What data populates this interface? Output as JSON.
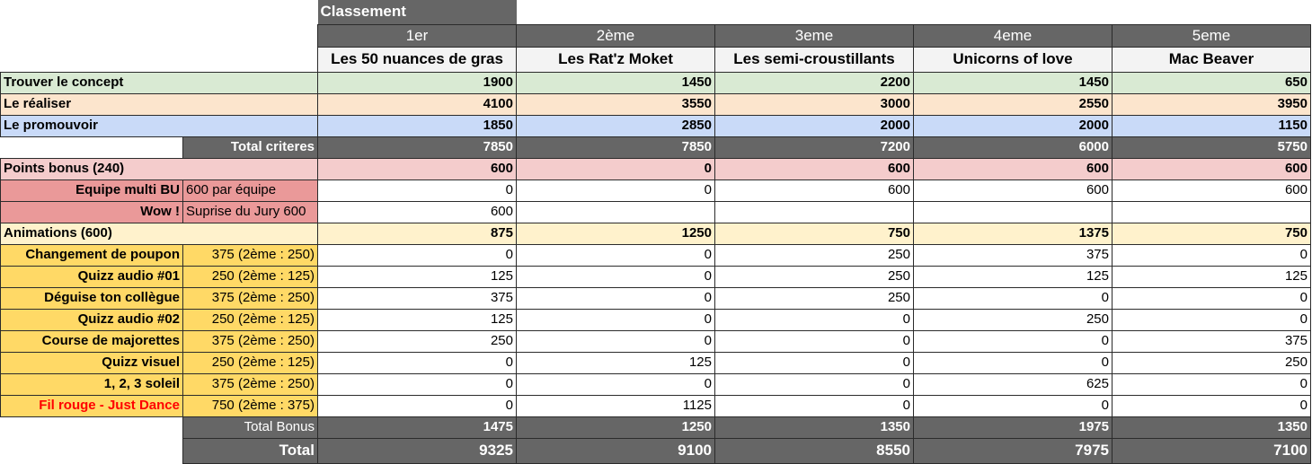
{
  "header": {
    "classement": "Classement",
    "ranks": [
      "1er",
      "2ème",
      "3eme",
      "4eme",
      "5eme"
    ],
    "teams": [
      "Les 50 nuances de gras",
      "Les Rat'z Moket",
      "Les semi-croustillants",
      "Unicorns of love",
      "Mac Beaver"
    ]
  },
  "criteria": [
    {
      "label": "Trouver le concept",
      "values": [
        "1900",
        "1450",
        "2200",
        "1450",
        "650"
      ]
    },
    {
      "label": "Le réaliser",
      "values": [
        "4100",
        "3550",
        "3000",
        "2550",
        "3950"
      ]
    },
    {
      "label": "Le promouvoir",
      "values": [
        "1850",
        "2850",
        "2000",
        "2000",
        "1150"
      ]
    }
  ],
  "total_criteres": {
    "label": "Total criteres",
    "values": [
      "7850",
      "7850",
      "7200",
      "6000",
      "5750"
    ]
  },
  "bonus": {
    "label": "Points bonus (240)",
    "values": [
      "600",
      "0",
      "600",
      "600",
      "600"
    ]
  },
  "bonus_items": [
    {
      "label": "Equipe multi BU",
      "desc": "600 par équipe",
      "values": [
        "0",
        "0",
        "600",
        "600",
        "600"
      ]
    },
    {
      "label": "Wow !",
      "desc": "Suprise du Jury 600",
      "values": [
        "600",
        "",
        "",
        "",
        ""
      ]
    }
  ],
  "animations": {
    "label": "Animations (600)",
    "values": [
      "875",
      "1250",
      "750",
      "1375",
      "750"
    ]
  },
  "animation_items": [
    {
      "label": "Changement de poupon",
      "desc": "375 (2ème : 250)",
      "values": [
        "0",
        "0",
        "250",
        "375",
        "0"
      ]
    },
    {
      "label": "Quizz audio #01",
      "desc": "250 (2ème : 125)",
      "values": [
        "125",
        "0",
        "250",
        "125",
        "125"
      ]
    },
    {
      "label": "Déguise ton collègue",
      "desc": "375 (2ème : 250)",
      "values": [
        "375",
        "0",
        "250",
        "0",
        "0"
      ]
    },
    {
      "label": "Quizz audio #02",
      "desc": "250 (2ème : 125)",
      "values": [
        "125",
        "0",
        "0",
        "250",
        "0"
      ]
    },
    {
      "label": "Course de majorettes",
      "desc": "375 (2ème : 250)",
      "values": [
        "250",
        "0",
        "0",
        "0",
        "375"
      ]
    },
    {
      "label": "Quizz visuel",
      "desc": "250 (2ème : 125)",
      "values": [
        "0",
        "125",
        "0",
        "0",
        "250"
      ]
    },
    {
      "label": "1, 2, 3 soleil",
      "desc": "375 (2ème : 250)",
      "values": [
        "0",
        "0",
        "0",
        "625",
        "0"
      ]
    },
    {
      "label": "Fil rouge - Just Dance",
      "desc": "750 (2ème : 375)",
      "values": [
        "0",
        "1125",
        "0",
        "0",
        "0"
      ]
    }
  ],
  "total_bonus": {
    "label": "Total Bonus",
    "values": [
      "1475",
      "1250",
      "1350",
      "1975",
      "1350"
    ]
  },
  "total": {
    "label": "Total",
    "values": [
      "9325",
      "9100",
      "8550",
      "7975",
      "7100"
    ]
  },
  "colors": {
    "header_dark": "#666666",
    "criteria_green": "#d9ead3",
    "criteria_orange": "#fce5cd",
    "criteria_blue": "#c9daf8",
    "bonus_pink": "#f4cccc",
    "bonus_item_pink": "#ea9999",
    "animations_light_yellow": "#fff2cc",
    "animation_item_yellow": "#ffd966",
    "fil_rouge_text": "#ff0000"
  }
}
